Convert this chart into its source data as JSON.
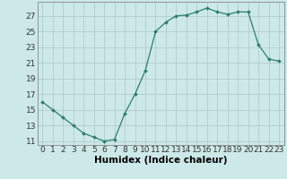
{
  "x": [
    0,
    1,
    2,
    3,
    4,
    5,
    6,
    7,
    8,
    9,
    10,
    11,
    12,
    13,
    14,
    15,
    16,
    17,
    18,
    19,
    20,
    21,
    22,
    23
  ],
  "y": [
    16,
    15,
    14,
    13,
    12,
    11.5,
    11,
    11.2,
    14.5,
    17,
    20,
    25,
    26.2,
    27,
    27.1,
    27.5,
    28,
    27.5,
    27.2,
    27.5,
    27.5,
    23.3,
    21.5,
    21.2
  ],
  "line_color": "#2e7d6e",
  "marker_color": "#2e7d6e",
  "bg_color": "#cde8e8",
  "grid_color": "#aac8c8",
  "xlabel": "Humidex (Indice chaleur)",
  "ylim": [
    10.5,
    28.8
  ],
  "xlim": [
    -0.5,
    23.5
  ],
  "yticks": [
    11,
    13,
    15,
    17,
    19,
    21,
    23,
    25,
    27
  ],
  "xticks": [
    0,
    1,
    2,
    3,
    4,
    5,
    6,
    7,
    8,
    9,
    10,
    11,
    12,
    13,
    14,
    15,
    16,
    17,
    18,
    19,
    20,
    21,
    22,
    23
  ],
  "font_size": 6.5,
  "xlabel_fontsize": 7.5
}
